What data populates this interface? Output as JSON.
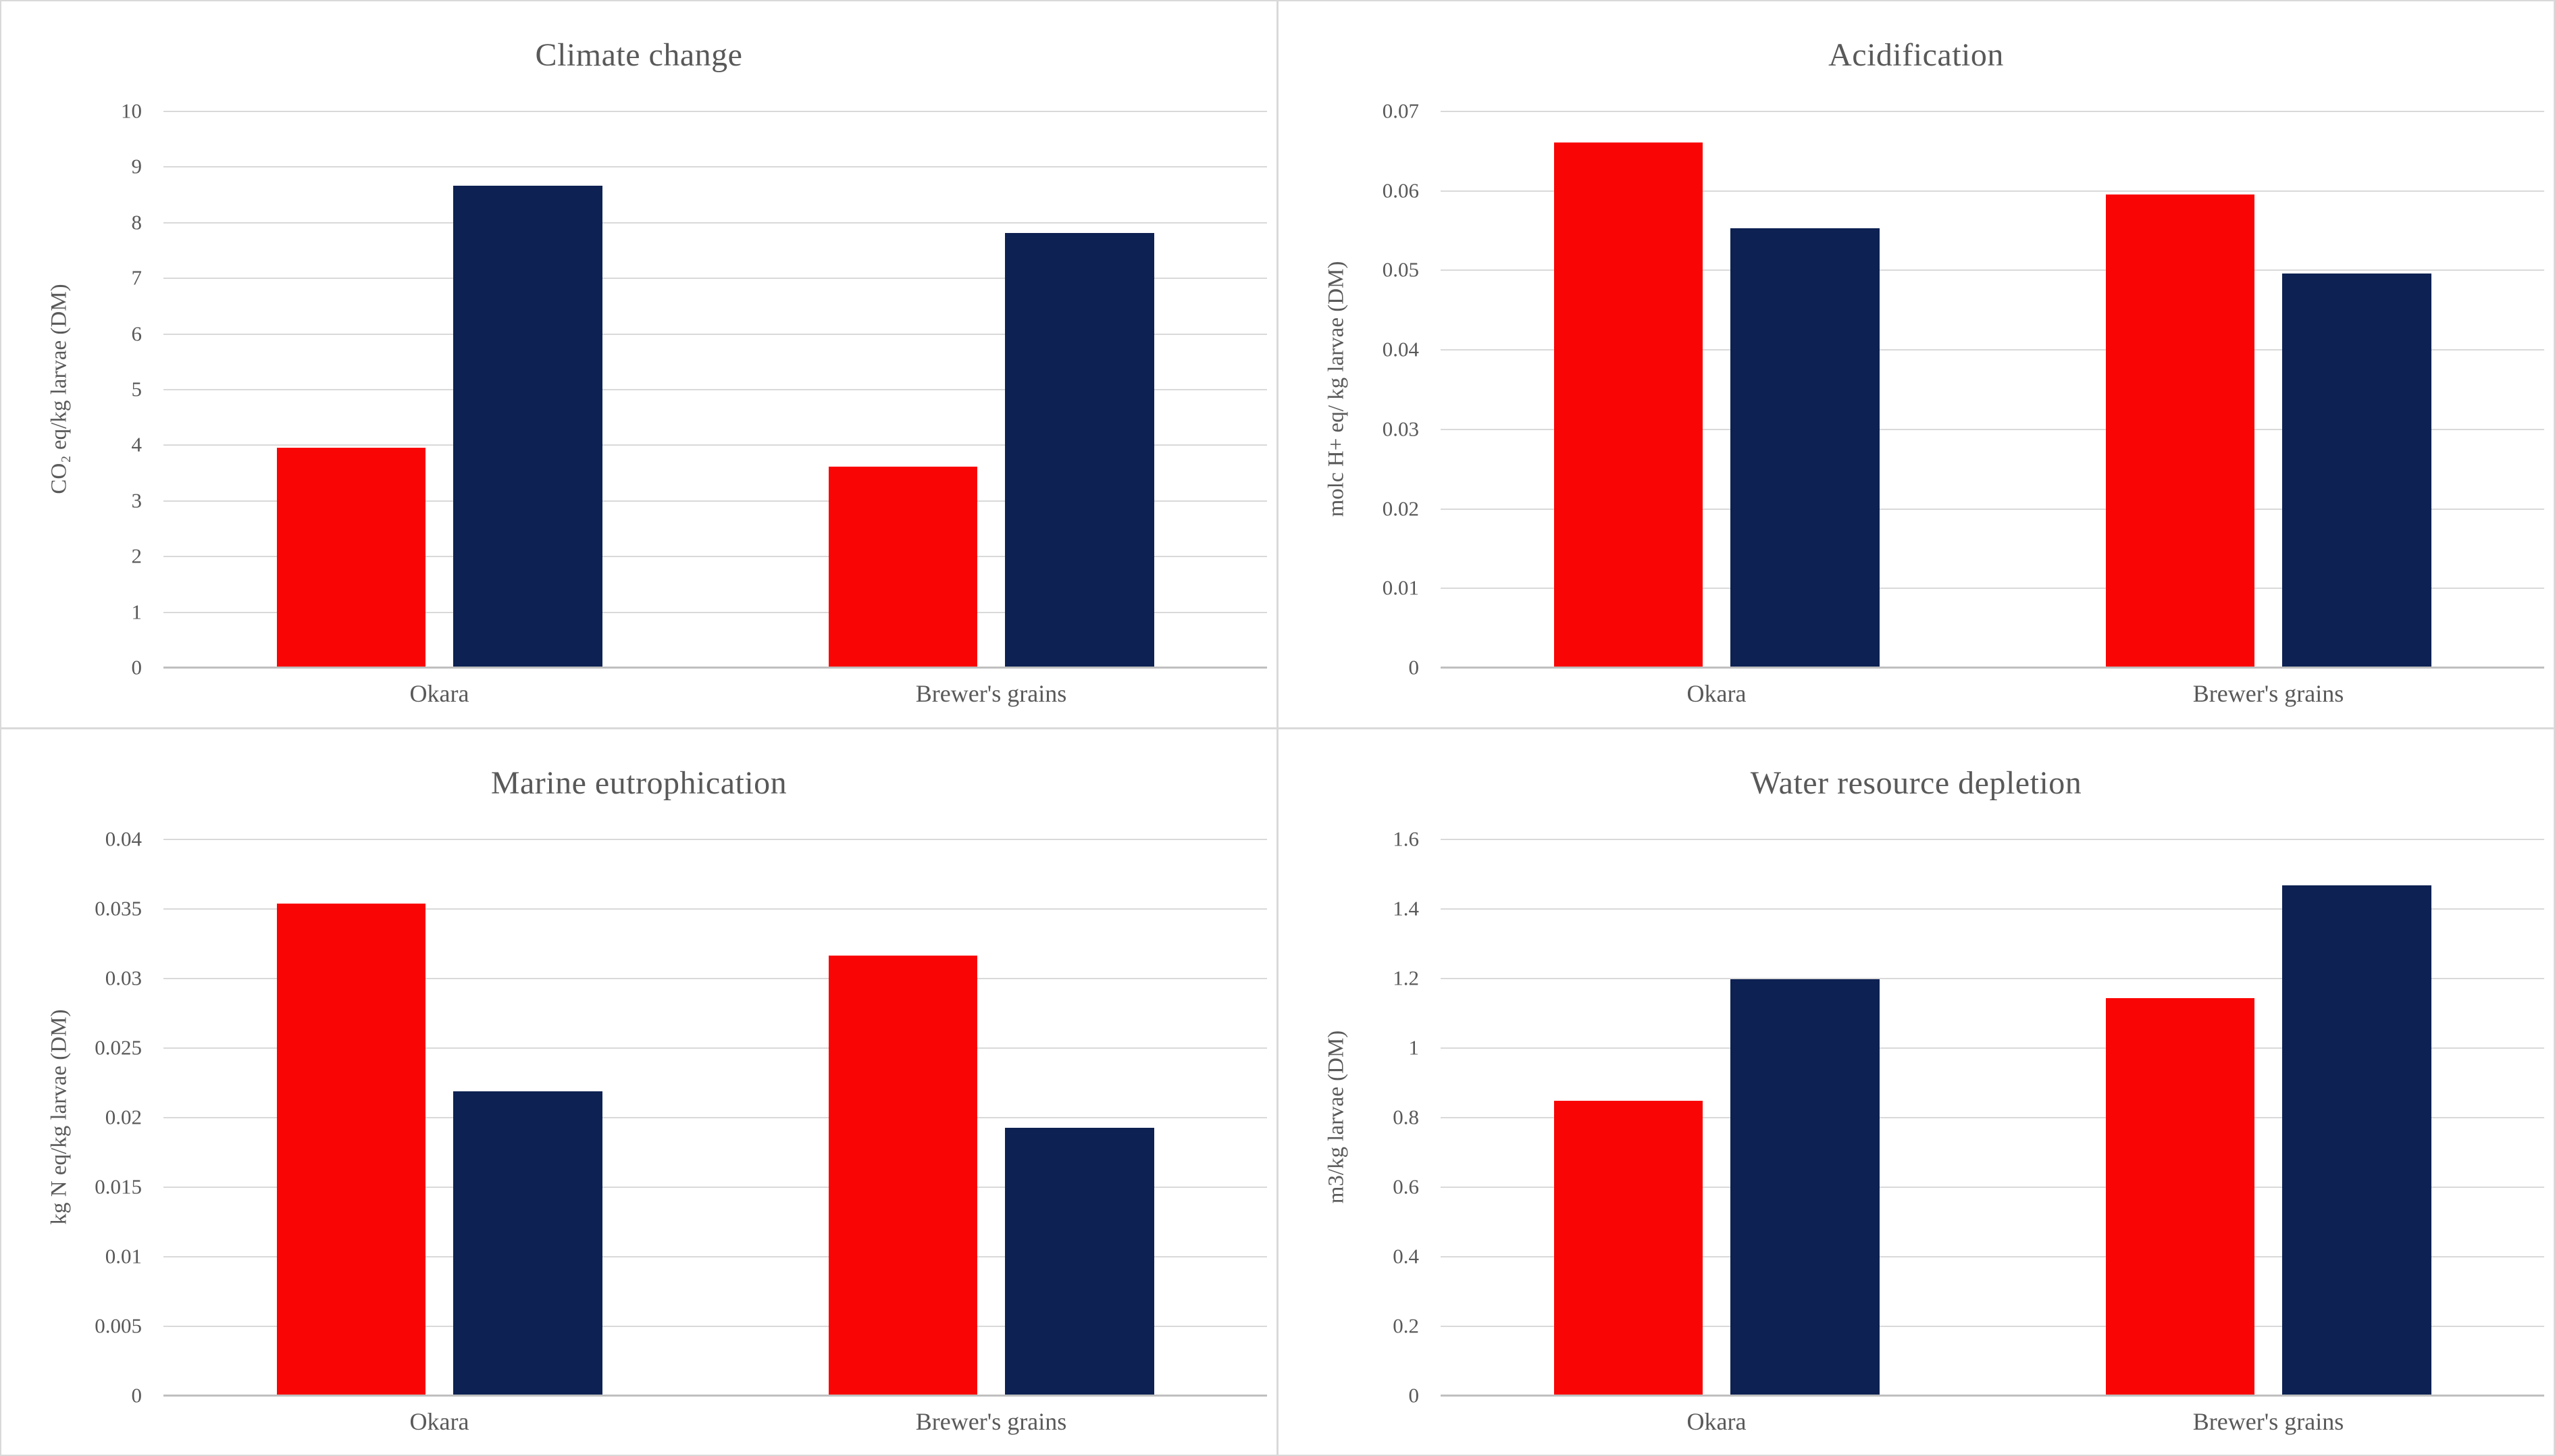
{
  "figure": {
    "background": "#ffffff",
    "panel_border_color": "#d9d9d9",
    "gridline_color": "#d9d9d9",
    "axis_line_color": "#bfbfbf",
    "text_color": "#595959",
    "series_colors": {
      "red": "#fa0505",
      "navy": "#0d2152"
    }
  },
  "chart_data": [
    {
      "type": "bar",
      "title": "Climate change",
      "ylabel": "CO₂ eq/kg larvae (DM)",
      "xlabel": "",
      "categories": [
        "Okara",
        "Brewer's grains"
      ],
      "series": [
        {
          "name": "series-1",
          "color": "#fa0505",
          "values": [
            3.95,
            3.6
          ]
        },
        {
          "name": "series-2",
          "color": "#0d2152",
          "values": [
            8.65,
            7.8
          ]
        }
      ],
      "ylim": [
        0,
        10
      ],
      "yticks": [
        "10",
        "9",
        "8",
        "7",
        "6",
        "5",
        "4",
        "3",
        "2",
        "1",
        "0"
      ],
      "grid": "horizontal",
      "legend": "none"
    },
    {
      "type": "bar",
      "title": "Acidification",
      "ylabel": "molc H+ eq/ kg larvae (DM)",
      "xlabel": "",
      "categories": [
        "Okara",
        "Brewer's grains"
      ],
      "series": [
        {
          "name": "series-1",
          "color": "#fa0505",
          "values": [
            0.066,
            0.0595
          ]
        },
        {
          "name": "series-2",
          "color": "#0d2152",
          "values": [
            0.0552,
            0.0495
          ]
        }
      ],
      "ylim": [
        0,
        0.07
      ],
      "yticks": [
        "0.07",
        "0.06",
        "0.05",
        "0.04",
        "0.03",
        "0.02",
        "0.01",
        "0"
      ],
      "grid": "horizontal",
      "legend": "none"
    },
    {
      "type": "bar",
      "title": "Marine eutrophication",
      "ylabel": "kg N eq/kg larvae (DM)",
      "xlabel": "",
      "categories": [
        "Okara",
        "Brewer's grains"
      ],
      "series": [
        {
          "name": "series-1",
          "color": "#fa0505",
          "values": [
            0.0353,
            0.0316
          ]
        },
        {
          "name": "series-2",
          "color": "#0d2152",
          "values": [
            0.0218,
            0.0192
          ]
        }
      ],
      "ylim": [
        0,
        0.04
      ],
      "yticks": [
        "0.04",
        "0.035",
        "0.03",
        "0.025",
        "0.02",
        "0.015",
        "0.01",
        "0.005",
        "0"
      ],
      "grid": "horizontal",
      "legend": "none"
    },
    {
      "type": "bar",
      "title": "Water resource depletion",
      "ylabel": "m3/kg larvae (DM)",
      "xlabel": "",
      "categories": [
        "Okara",
        "Brewer's grains"
      ],
      "series": [
        {
          "name": "series-1",
          "color": "#fa0505",
          "values": [
            0.845,
            1.14
          ]
        },
        {
          "name": "series-2",
          "color": "#0d2152",
          "values": [
            1.195,
            1.465
          ]
        }
      ],
      "ylim": [
        0,
        1.6
      ],
      "yticks": [
        "1.6",
        "1.4",
        "1.2",
        "1",
        "0.8",
        "0.6",
        "0.4",
        "0.2",
        "0"
      ],
      "grid": "horizontal",
      "legend": "none"
    }
  ]
}
